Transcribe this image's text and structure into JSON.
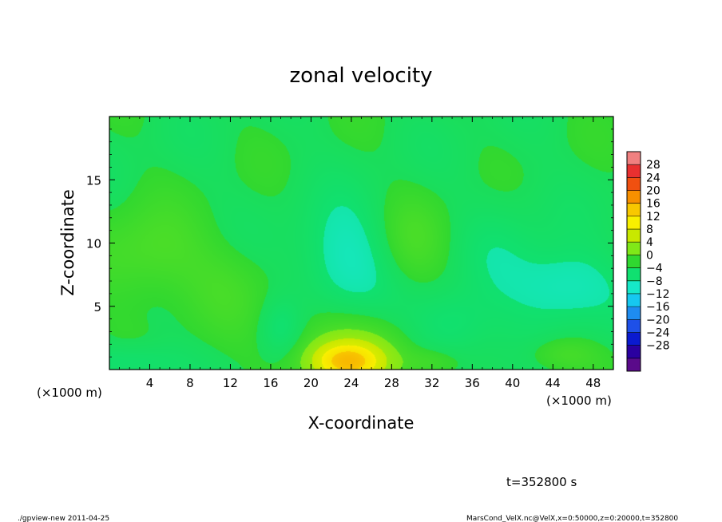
{
  "chart_data": {
    "type": "heatmap",
    "title": "zonal velocity",
    "xlabel": "X-coordinate",
    "ylabel": "Z-coordinate",
    "x_unit_label": "(×1000 m)",
    "x_unit_label_right": "(×1000 m)",
    "xlim": [
      0,
      50
    ],
    "ylim": [
      0,
      20
    ],
    "x_ticks": [
      4,
      8,
      12,
      16,
      20,
      24,
      28,
      32,
      36,
      40,
      44,
      48
    ],
    "y_ticks": [
      5,
      10,
      15
    ],
    "colorbar": {
      "levels": [
        -32,
        -28,
        -24,
        -20,
        -16,
        -12,
        -8,
        -4,
        0,
        4,
        8,
        12,
        16,
        20,
        24,
        28,
        32
      ],
      "labels": [
        "28",
        "24",
        "20",
        "16",
        "12",
        "8",
        "4",
        "0",
        "−4",
        "−8",
        "−12",
        "−16",
        "−20",
        "−24",
        "−28"
      ],
      "colors": [
        "#5a0a8a",
        "#2a00a0",
        "#0a1ad0",
        "#1e50e8",
        "#1e8cf0",
        "#16c8f0",
        "#16e8c8",
        "#10e070",
        "#30d830",
        "#80e818",
        "#c8e800",
        "#f8f000",
        "#f8c800",
        "#f89000",
        "#f05010",
        "#e83030",
        "#f08080"
      ]
    },
    "field_features": [
      {
        "x": 23.5,
        "z": 0.6,
        "value": 14,
        "sx": 2.6,
        "sz": 1.1
      },
      {
        "x": 23.5,
        "z": 1.8,
        "value": 6,
        "sx": 4.5,
        "sz": 2.2
      },
      {
        "x": 23.5,
        "z": 8.5,
        "value": -6,
        "sx": 3.2,
        "sz": 3.2
      },
      {
        "x": 45,
        "z": 6.5,
        "value": -6,
        "sx": 3.8,
        "sz": 2.2
      },
      {
        "x": 34,
        "z": 3.5,
        "value": -4.5,
        "sx": 3.0,
        "sz": 2.0
      },
      {
        "x": 2.0,
        "z": 0.6,
        "value": -4,
        "sx": 3.5,
        "sz": 1.0
      },
      {
        "x": 17,
        "z": 3.2,
        "value": -4,
        "sx": 1.5,
        "sz": 1.6
      },
      {
        "x": 4,
        "z": 9,
        "value": 4.5,
        "sx": 4,
        "sz": 2.6
      },
      {
        "x": 30,
        "z": 10,
        "value": 3.5,
        "sx": 2.6,
        "sz": 2.6
      },
      {
        "x": 45,
        "z": 1.2,
        "value": 4,
        "sx": 2.5,
        "sz": 1.0
      },
      {
        "x": 32,
        "z": 0.6,
        "value": 3,
        "sx": 2,
        "sz": 0.8
      },
      {
        "x": 12,
        "z": 6.5,
        "value": 2.5,
        "sx": 3,
        "sz": 2.5
      },
      {
        "x": 39,
        "z": 10,
        "value": -2,
        "sx": 3,
        "sz": 3
      }
    ],
    "field_base": -0.5,
    "time_label": "t=352800 s"
  },
  "footer": {
    "left": "./gpview-new  2011-04-25",
    "right": "MarsCond_VelX.nc@VelX,x=0:50000,z=0:20000,t=352800"
  }
}
